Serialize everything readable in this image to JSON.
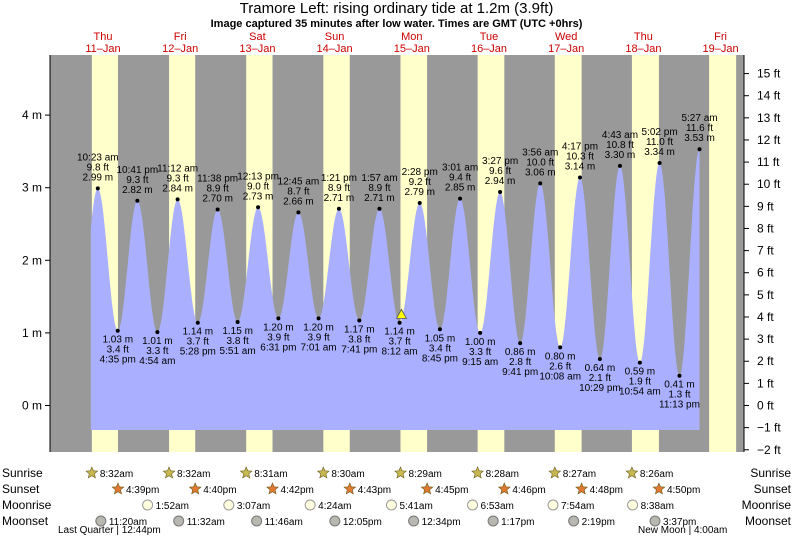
{
  "title": "Tramore Left: rising  ordinary tide at 1.2m (3.9ft)",
  "subtitle": "Image captured 35 minutes after low water. Times are GMT (UTC +0hrs)",
  "chart_data": {
    "type": "area",
    "days": [
      {
        "dow": "Thu",
        "date": "11–Jan"
      },
      {
        "dow": "Fri",
        "date": "12–Jan"
      },
      {
        "dow": "Sat",
        "date": "13–Jan"
      },
      {
        "dow": "Sun",
        "date": "14–Jan"
      },
      {
        "dow": "Mon",
        "date": "15–Jan"
      },
      {
        "dow": "Tue",
        "date": "16–Jan"
      },
      {
        "dow": "Wed",
        "date": "17–Jan"
      },
      {
        "dow": "Thu",
        "date": "18–Jan"
      },
      {
        "dow": "Fri",
        "date": "19–Jan"
      }
    ],
    "y_left": {
      "unit": "m",
      "range": [
        -0.5,
        4.6
      ],
      "ticks": [
        0,
        1,
        2,
        3,
        4
      ],
      "labels": [
        "0 m",
        "1 m",
        "2 m",
        "3 m",
        "4 m"
      ]
    },
    "y_right": {
      "unit": "ft",
      "ticks": [
        -2,
        -1,
        0,
        1,
        2,
        3,
        4,
        5,
        6,
        7,
        8,
        9,
        10,
        11,
        12,
        13,
        14,
        15
      ],
      "labels": [
        "−2 ft",
        "−1 ft",
        "0 ft",
        "1 ft",
        "2 ft",
        "3 ft",
        "4 ft",
        "5 ft",
        "6 ft",
        "7 ft",
        "8 ft",
        "9 ft",
        "10 ft",
        "11 ft",
        "12 ft",
        "13 ft",
        "14 ft",
        "15 ft"
      ]
    },
    "tides": [
      {
        "type": "high",
        "day": 0,
        "time": "10:23 am",
        "m": 2.99,
        "ft": "9.8 ft",
        "m_label": "2.99 m"
      },
      {
        "type": "low",
        "day": 0,
        "time": "4:35 pm",
        "m": 1.03,
        "ft": "3.4 ft",
        "m_label": "1.03 m"
      },
      {
        "type": "high",
        "day": 0,
        "time": "10:41 pm",
        "m": 2.82,
        "ft": "9.3 ft",
        "m_label": "2.82 m"
      },
      {
        "type": "low",
        "day": 1,
        "time": "4:54 am",
        "m": 1.01,
        "ft": "3.3 ft",
        "m_label": "1.01 m"
      },
      {
        "type": "high",
        "day": 1,
        "time": "11:12 am",
        "m": 2.84,
        "ft": "9.3 ft",
        "m_label": "2.84 m"
      },
      {
        "type": "low",
        "day": 1,
        "time": "5:28 pm",
        "m": 1.14,
        "ft": "3.7 ft",
        "m_label": "1.14 m"
      },
      {
        "type": "high",
        "day": 1,
        "time": "11:38 pm",
        "m": 2.7,
        "ft": "8.9 ft",
        "m_label": "2.70 m"
      },
      {
        "type": "low",
        "day": 2,
        "time": "5:51 am",
        "m": 1.15,
        "ft": "3.8 ft",
        "m_label": "1.15 m"
      },
      {
        "type": "high",
        "day": 2,
        "time": "12:13 pm",
        "m": 2.73,
        "ft": "9.0 ft",
        "m_label": "2.73 m"
      },
      {
        "type": "low",
        "day": 2,
        "time": "6:31 pm",
        "m": 1.2,
        "ft": "3.9 ft",
        "m_label": "1.20 m"
      },
      {
        "type": "high",
        "day": 3,
        "time": "12:45 am",
        "m": 2.66,
        "ft": "8.7 ft",
        "m_label": "2.66 m"
      },
      {
        "type": "low",
        "day": 3,
        "time": "7:01 am",
        "m": 1.2,
        "ft": "3.9 ft",
        "m_label": "1.20 m"
      },
      {
        "type": "high",
        "day": 3,
        "time": "1:21 pm",
        "m": 2.71,
        "ft": "8.9 ft",
        "m_label": "2.71 m"
      },
      {
        "type": "low",
        "day": 3,
        "time": "7:41 pm",
        "m": 1.17,
        "ft": "3.8 ft",
        "m_label": "1.17 m"
      },
      {
        "type": "high",
        "day": 4,
        "time": "1:57 am",
        "m": 2.71,
        "ft": "8.9 ft",
        "m_label": "2.71 m"
      },
      {
        "type": "low",
        "day": 4,
        "time": "8:12 am",
        "m": 1.14,
        "ft": "3.7 ft",
        "m_label": "1.14 m"
      },
      {
        "type": "high",
        "day": 4,
        "time": "2:28 pm",
        "m": 2.79,
        "ft": "9.2 ft",
        "m_label": "2.79 m"
      },
      {
        "type": "low",
        "day": 4,
        "time": "8:45 pm",
        "m": 1.05,
        "ft": "3.4 ft",
        "m_label": "1.05 m"
      },
      {
        "type": "high",
        "day": 5,
        "time": "3:01 am",
        "m": 2.85,
        "ft": "9.4 ft",
        "m_label": "2.85 m"
      },
      {
        "type": "low",
        "day": 5,
        "time": "9:15 am",
        "m": 1.0,
        "ft": "3.3 ft",
        "m_label": "1.00 m"
      },
      {
        "type": "high",
        "day": 5,
        "time": "3:27 pm",
        "m": 2.94,
        "ft": "9.6 ft",
        "m_label": "2.94 m"
      },
      {
        "type": "low",
        "day": 5,
        "time": "9:41 pm",
        "m": 0.86,
        "ft": "2.8 ft",
        "m_label": "0.86 m"
      },
      {
        "type": "high",
        "day": 6,
        "time": "3:56 am",
        "m": 3.06,
        "ft": "10.0 ft",
        "m_label": "3.06 m"
      },
      {
        "type": "low",
        "day": 6,
        "time": "10:08 am",
        "m": 0.8,
        "ft": "2.6 ft",
        "m_label": "0.80 m"
      },
      {
        "type": "high",
        "day": 6,
        "time": "4:17 pm",
        "m": 3.14,
        "ft": "10.3 ft",
        "m_label": "3.14 m"
      },
      {
        "type": "low",
        "day": 6,
        "time": "10:29 pm",
        "m": 0.64,
        "ft": "2.1 ft",
        "m_label": "0.64 m"
      },
      {
        "type": "high",
        "day": 7,
        "time": "4:43 am",
        "m": 3.3,
        "ft": "10.8 ft",
        "m_label": "3.30 m"
      },
      {
        "type": "low",
        "day": 7,
        "time": "10:54 am",
        "m": 0.59,
        "ft": "1.9 ft",
        "m_label": "0.59 m"
      },
      {
        "type": "high",
        "day": 7,
        "time": "5:02 pm",
        "m": 3.34,
        "ft": "11.0 ft",
        "m_label": "3.34 m"
      },
      {
        "type": "low",
        "day": 7,
        "time": "11:13 pm",
        "m": 0.41,
        "ft": "1.3 ft",
        "m_label": "0.41 m"
      },
      {
        "type": "high",
        "day": 8,
        "time": "5:27 am",
        "m": 3.53,
        "ft": "11.6 ft",
        "m_label": "3.53 m"
      }
    ],
    "current_level_m": 1.2,
    "current_time": "8:47 am, 15–Jan",
    "colors": {
      "night": "#999999",
      "day": "#ffffcc",
      "water": "#aab0ff",
      "marker": "#ffff00"
    },
    "rows": {
      "sunrise": {
        "label": "Sunrise",
        "times": [
          "8:32am",
          "8:32am",
          "8:31am",
          "8:30am",
          "8:29am",
          "8:28am",
          "8:27am",
          "8:26am"
        ]
      },
      "sunset": {
        "label": "Sunset",
        "times": [
          "4:39pm",
          "4:40pm",
          "4:42pm",
          "4:43pm",
          "4:45pm",
          "4:46pm",
          "4:48pm",
          "4:50pm"
        ]
      },
      "moonrise": {
        "label": "Moonrise",
        "times": [
          "1:52am",
          "3:07am",
          "4:24am",
          "5:41am",
          "6:53am",
          "7:54am",
          "8:38am"
        ]
      },
      "moonset": {
        "label": "Moonset",
        "times": [
          "11:20am",
          "11:32am",
          "11:46am",
          "12:05pm",
          "12:34pm",
          "1:17pm",
          "2:19pm",
          "3:37pm"
        ]
      }
    },
    "moon_phases": {
      "left": "Last Quarter | 12:44pm",
      "right": "New Moon | 4:00am"
    }
  }
}
